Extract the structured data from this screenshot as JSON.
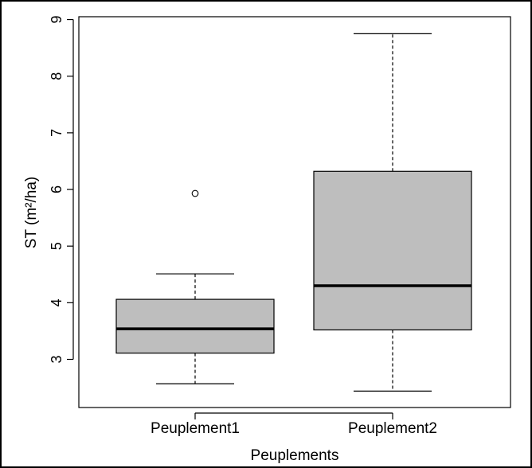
{
  "chart_data": {
    "type": "boxplot",
    "title": "",
    "xlabel": "Peuplements",
    "ylabel": "ST (m²/ha)",
    "ylim": [
      2.15,
      9.05
    ],
    "yticks": [
      "3",
      "4",
      "5",
      "6",
      "7",
      "8",
      "9"
    ],
    "grid": false,
    "colors": {
      "box_fill": "#bebebe",
      "stroke": "#000000"
    },
    "categories": [
      "Peuplement1",
      "Peuplement2"
    ],
    "boxes": [
      {
        "category": "Peuplement1",
        "whisker_low": 2.57,
        "q1": 3.11,
        "median": 3.54,
        "q3": 4.06,
        "whisker_high": 4.51,
        "outliers": [
          5.93
        ]
      },
      {
        "category": "Peuplement2",
        "whisker_low": 2.44,
        "q1": 3.52,
        "median": 4.3,
        "q3": 6.32,
        "whisker_high": 8.75,
        "outliers": []
      }
    ]
  }
}
